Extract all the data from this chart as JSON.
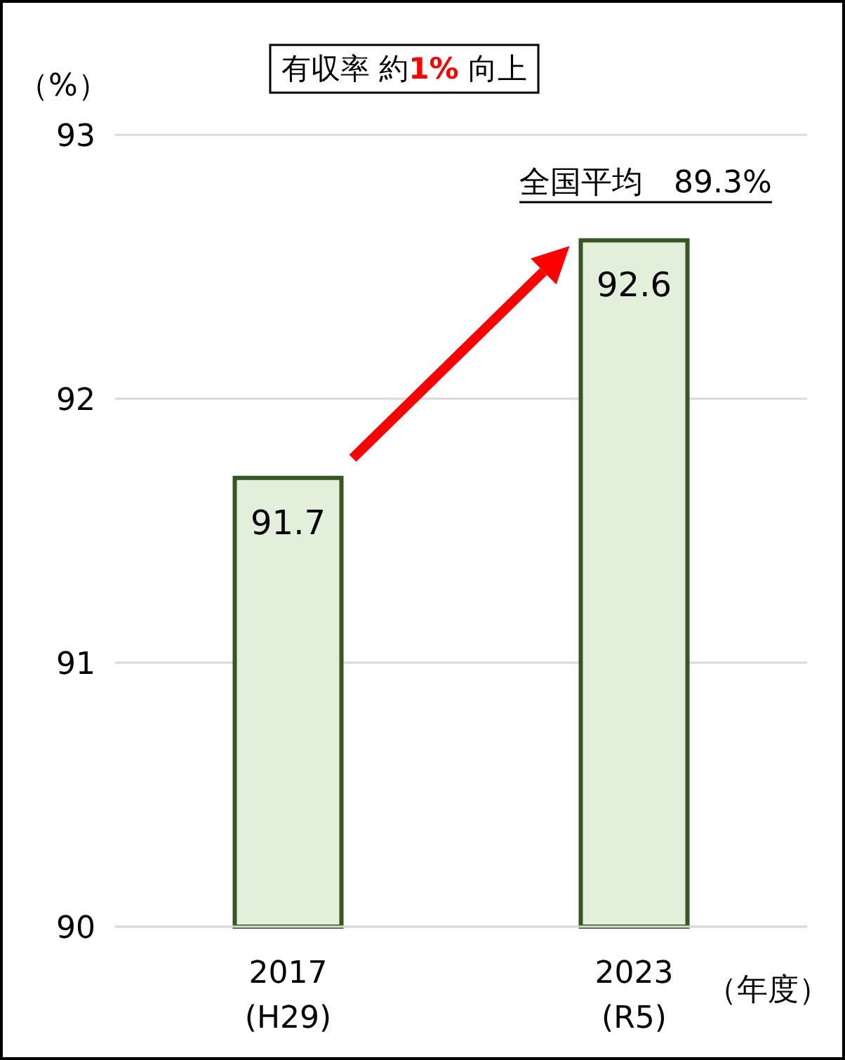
{
  "chart_data": {
    "type": "bar",
    "title": "有収率 約**1%** 向上",
    "ylabel": "（%）",
    "xlabel": "（年度）",
    "categories": [
      "2017\n(H29)",
      "2023\n(R5)"
    ],
    "values": [
      91.7,
      92.6
    ],
    "color": "#e2efda",
    "ylim": [
      90,
      93
    ],
    "yticks": [
      90,
      91,
      92,
      93
    ],
    "grid": "y",
    "data_labels": true,
    "annotations": [
      "全国平均　89.3%"
    ]
  }
}
